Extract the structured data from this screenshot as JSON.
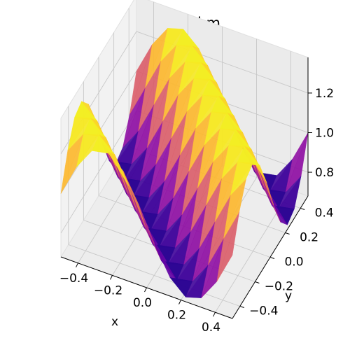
{
  "chart_data": {
    "type": "surface3d",
    "title": "Recovered m",
    "xlabel": "x",
    "ylabel": "y",
    "zlabel": "",
    "xlim": [
      -0.5,
      0.5
    ],
    "ylim": [
      -0.5,
      0.5
    ],
    "zlim": [
      0.68,
      1.38
    ],
    "x_ticks": [
      "−0.4",
      "−0.2",
      "0.0",
      "0.2",
      "0.4"
    ],
    "y_ticks": [
      "−0.4",
      "−0.2",
      "0.0",
      "0.2",
      "0.4"
    ],
    "z_ticks": [
      "0.8",
      "1.0",
      "1.2"
    ],
    "colormap": "plasma",
    "grid": true,
    "function": "1 + 0.3·sin(2π·(x + y))",
    "grid_points": 12
  }
}
